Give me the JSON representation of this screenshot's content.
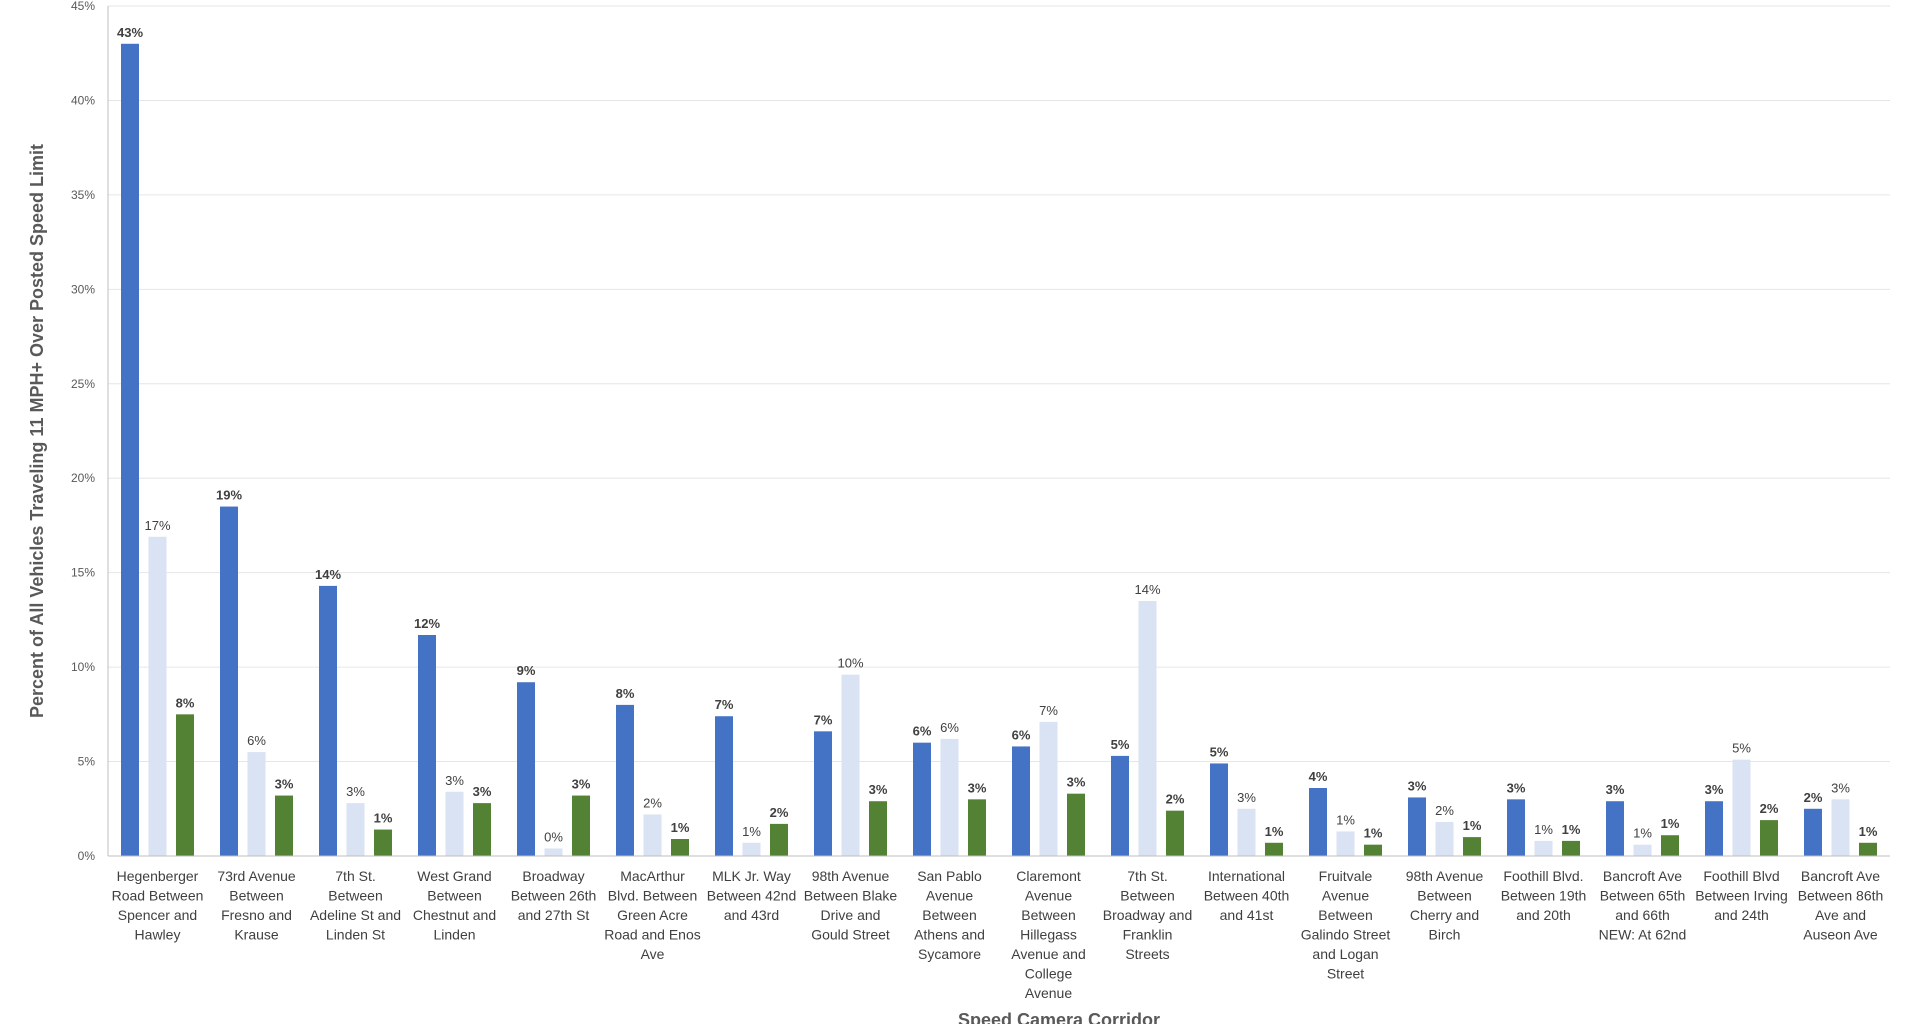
{
  "chart_data": {
    "type": "bar",
    "title": "",
    "xlabel": "Speed Camera Corridor",
    "ylabel": "Percent of All Vehicles Traveling 11 MPH+ Over Posted Speed Limit",
    "ylim": [
      0,
      45
    ],
    "yticks": [
      "0%",
      "5%",
      "10%",
      "15%",
      "20%",
      "25%",
      "30%",
      "35%",
      "40%",
      "45%"
    ],
    "grid": true,
    "legend": "none",
    "categories": [
      [
        "Hegenberger",
        "Road Between",
        "Spencer and",
        "Hawley"
      ],
      [
        "73rd Avenue",
        "Between",
        "Fresno and",
        "Krause"
      ],
      [
        "7th St.",
        "Between",
        "Adeline St and",
        "Linden St"
      ],
      [
        "West Grand",
        "Between",
        "Chestnut and",
        "Linden"
      ],
      [
        "Broadway",
        "Between 26th",
        "and 27th St"
      ],
      [
        "MacArthur",
        "Blvd. Between",
        "Green Acre",
        "Road and Enos",
        "Ave"
      ],
      [
        "MLK Jr. Way",
        "Between 42nd",
        "and 43rd"
      ],
      [
        "98th Avenue",
        "Between Blake",
        "Drive and",
        "Gould Street"
      ],
      [
        "San Pablo",
        "Avenue",
        "Between",
        "Athens and",
        "Sycamore"
      ],
      [
        "Claremont",
        "Avenue",
        "Between",
        "Hillegass",
        "Avenue and",
        "College",
        "Avenue"
      ],
      [
        "7th St.",
        "Between",
        "Broadway and",
        "Franklin",
        "Streets"
      ],
      [
        "International",
        "Between 40th",
        "and 41st"
      ],
      [
        "Fruitvale",
        "Avenue",
        "Between",
        "Galindo Street",
        "and Logan",
        "Street"
      ],
      [
        "98th Avenue",
        "Between",
        "Cherry and",
        "Birch"
      ],
      [
        "Foothill Blvd.",
        "Between 19th",
        "and 20th"
      ],
      [
        "Bancroft Ave",
        "Between 65th",
        "and 66th",
        "NEW: At 62nd"
      ],
      [
        "Foothill Blvd",
        "Between Irving",
        "and 24th"
      ],
      [
        "Bancroft Ave",
        "Between 86th",
        "Ave and",
        "Auseon Ave"
      ]
    ],
    "series": [
      {
        "color": "#4472c4",
        "bold_labels": true,
        "values": [
          43.0,
          18.5,
          14.3,
          11.7,
          9.2,
          8.0,
          7.4,
          6.6,
          6.0,
          5.8,
          5.3,
          4.9,
          3.6,
          3.1,
          3.0,
          2.9,
          2.9,
          2.5
        ],
        "labels": [
          "43%",
          "19%",
          "14%",
          "12%",
          "9%",
          "8%",
          "7%",
          "7%",
          "6%",
          "6%",
          "5%",
          "5%",
          "4%",
          "3%",
          "3%",
          "3%",
          "3%",
          "2%"
        ]
      },
      {
        "color": "#dae3f3",
        "bold_labels": false,
        "values": [
          16.9,
          5.5,
          2.8,
          3.4,
          0.4,
          2.2,
          0.7,
          9.6,
          6.2,
          7.1,
          13.5,
          2.5,
          1.3,
          1.8,
          0.8,
          0.6,
          5.1,
          3.0
        ],
        "labels": [
          "17%",
          "6%",
          "3%",
          "3%",
          "0%",
          "2%",
          "1%",
          "10%",
          "6%",
          "7%",
          "14%",
          "3%",
          "1%",
          "2%",
          "1%",
          "1%",
          "5%",
          "3%"
        ]
      },
      {
        "color": "#548235",
        "bold_labels": true,
        "values": [
          7.5,
          3.2,
          1.4,
          2.8,
          3.2,
          0.9,
          1.7,
          2.9,
          3.0,
          3.3,
          2.4,
          0.7,
          0.6,
          1.0,
          0.8,
          1.1,
          1.9,
          0.7
        ],
        "labels": [
          "8%",
          "3%",
          "1%",
          "3%",
          "3%",
          "1%",
          "2%",
          "3%",
          "3%",
          "3%",
          "2%",
          "1%",
          "1%",
          "1%",
          "1%",
          "1%",
          "2%",
          "1%"
        ]
      }
    ]
  }
}
